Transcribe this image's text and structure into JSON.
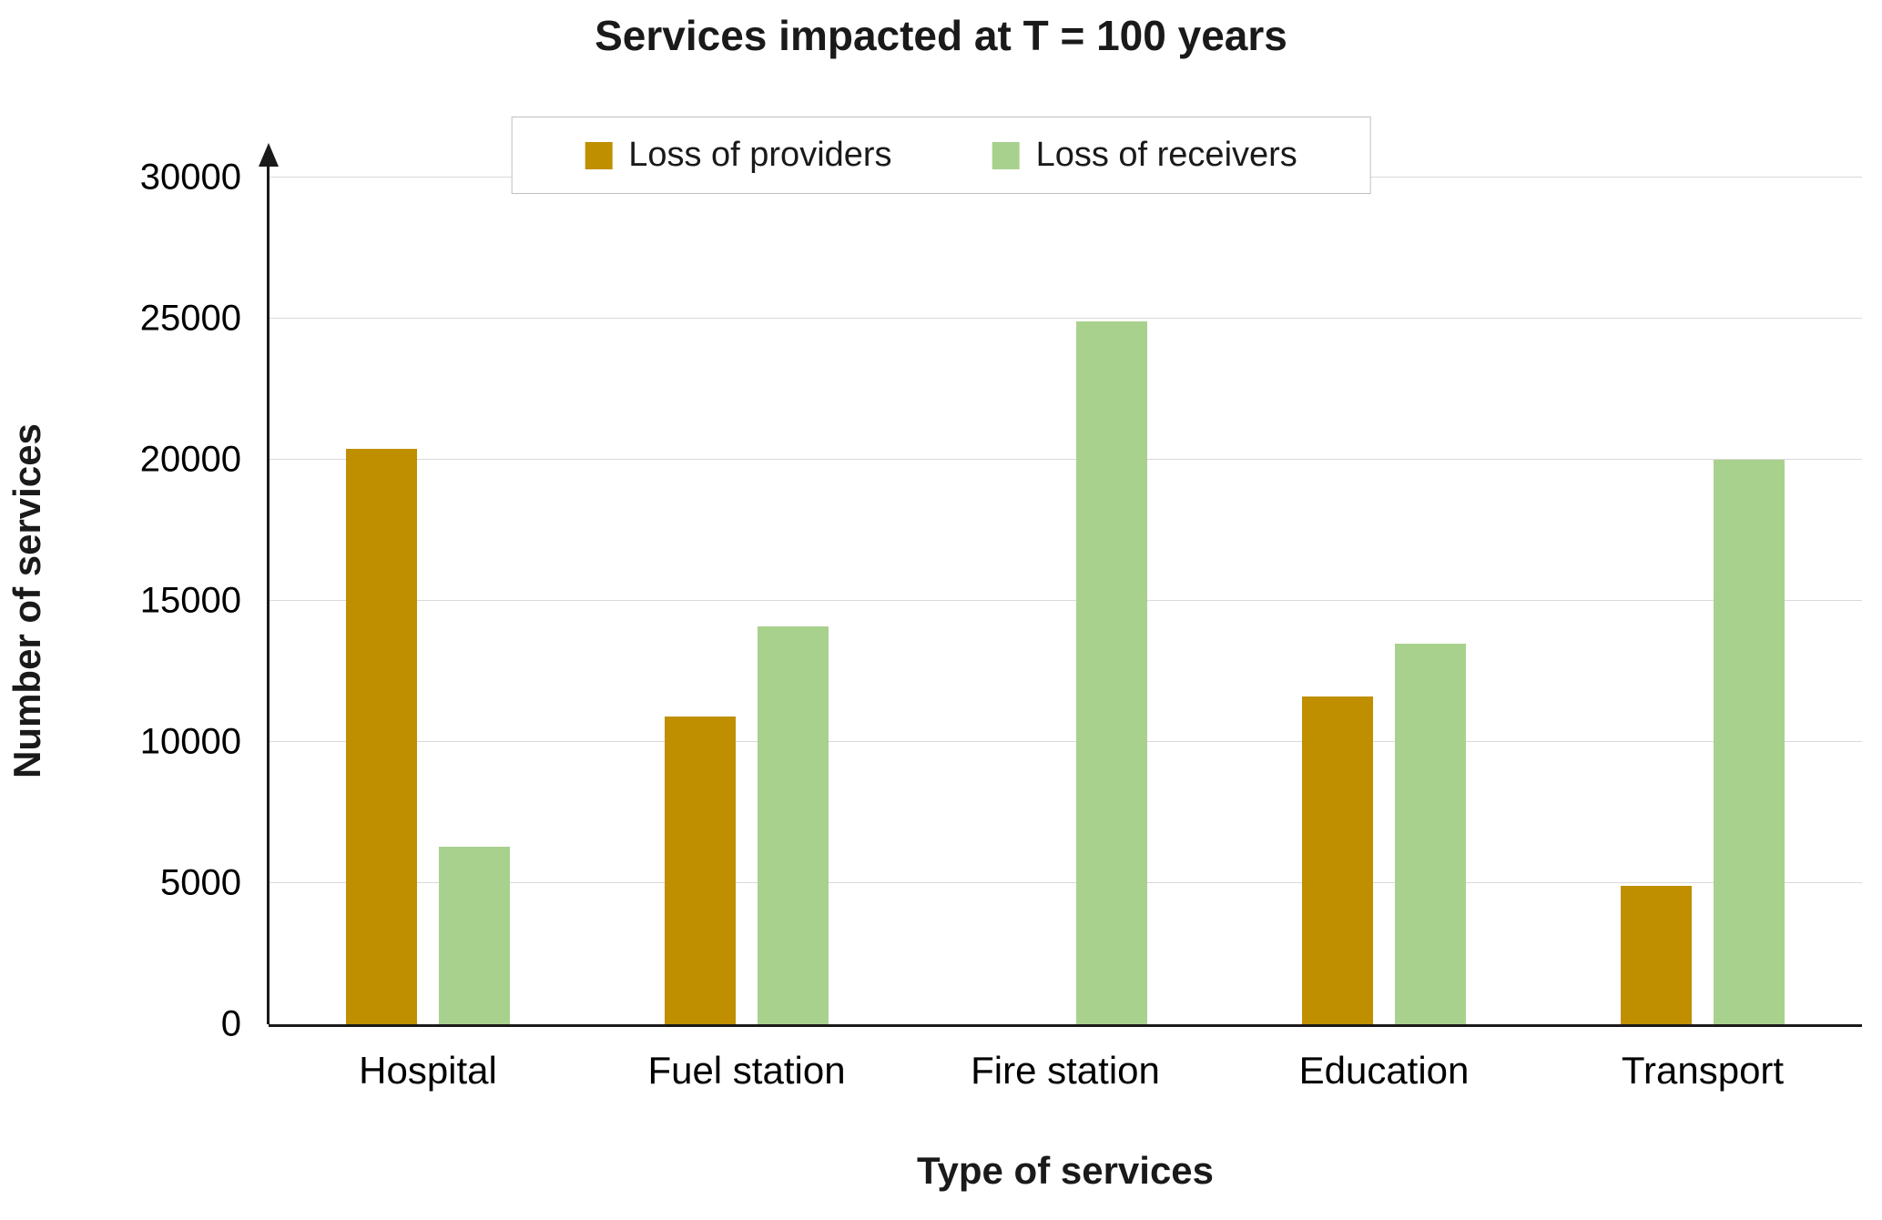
{
  "title": "Services impacted at T = 100 years",
  "x_axis_title": "Type of services",
  "y_axis_title": "Number of services",
  "chart_data": {
    "type": "bar",
    "title": "Services impacted at T = 100 years",
    "xlabel": "Type of services",
    "ylabel": "Number of services",
    "ylim": [
      0,
      30000
    ],
    "ytick_step": 5000,
    "ytick_labels": [
      "0",
      "5000",
      "10000",
      "15000",
      "20000",
      "25000",
      "30000"
    ],
    "grid": "horizontal",
    "legend_position": "top",
    "categories": [
      "Hospital",
      "Fuel station",
      "Fire station",
      "Education",
      "Transport"
    ],
    "series": [
      {
        "name": "Loss of providers",
        "color": "#BF8F00",
        "values": [
          20400,
          10900,
          0,
          11600,
          4900
        ]
      },
      {
        "name": "Loss of receivers",
        "color": "#A9D18E",
        "values": [
          6300,
          14100,
          24900,
          13500,
          20000
        ]
      }
    ]
  },
  "colors": {
    "gridline": "#d9d9d9",
    "axis": "#1a1a1a",
    "text": "#000000"
  }
}
